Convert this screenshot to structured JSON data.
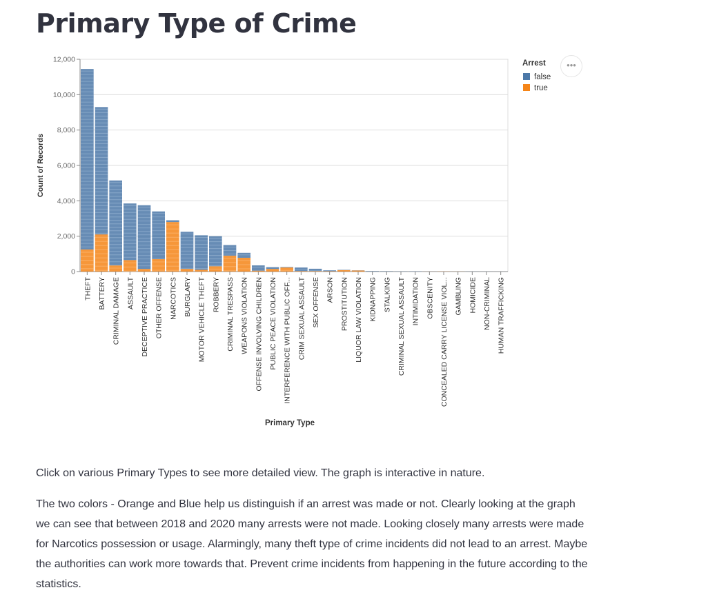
{
  "page": {
    "title": "Primary Type of Crime",
    "paragraph1": "Click on various Primary Types to see more detailed view. The graph is interactive in nature.",
    "paragraph2": "The two colors - Orange and Blue help us distinguish if an arrest was made or not. Clearly looking at the graph we can see that between 2018 and 2020 many arrests were not made. Looking closely many arrests were made for Narcotics possession or usage. Alarmingly, many theft type of crime incidents did not lead to an arrest. Maybe the authorities can work more towards that. Prevent crime incidents from happening in the future according to the statistics.",
    "menu_glyph": "•••"
  },
  "chart_data": {
    "type": "bar",
    "stacked": true,
    "xlabel": "Primary Type",
    "ylabel": "Count of Records",
    "ylim": [
      0,
      12000
    ],
    "yticks": [
      0,
      2000,
      4000,
      6000,
      8000,
      10000,
      12000
    ],
    "ytick_labels": [
      "0",
      "2,000",
      "4,000",
      "6,000",
      "8,000",
      "10,000",
      "12,000"
    ],
    "grid": true,
    "legend": {
      "title": "Arrest",
      "position": "top-right"
    },
    "categories": [
      "THEFT",
      "BATTERY",
      "CRIMINAL DAMAGE",
      "ASSAULT",
      "DECEPTIVE PRACTICE",
      "OTHER OFFENSE",
      "NARCOTICS",
      "BURGLARY",
      "MOTOR VEHICLE THEFT",
      "ROBBERY",
      "CRIMINAL TRESPASS",
      "WEAPONS VIOLATION",
      "OFFENSE INVOLVING CHILDREN",
      "PUBLIC PEACE VIOLATION",
      "INTERFERENCE WITH PUBLIC OFF...",
      "CRIM SEXUAL ASSAULT",
      "SEX OFFENSE",
      "ARSON",
      "PROSTITUTION",
      "LIQUOR LAW VIOLATION",
      "KIDNAPPING",
      "STALKING",
      "CRIMINAL SEXUAL ASSAULT",
      "INTIMIDATION",
      "OBSCENITY",
      "CONCEALED CARRY LICENSE VIOL...",
      "GAMBLING",
      "HOMICIDE",
      "NON-CRIMINAL",
      "HUMAN TRAFFICKING"
    ],
    "series": [
      {
        "name": "false",
        "color": "#4c78a8",
        "values": [
          10200,
          7200,
          4800,
          3200,
          3600,
          2700,
          100,
          2100,
          1950,
          1700,
          600,
          280,
          300,
          100,
          30,
          200,
          130,
          50,
          20,
          10,
          25,
          20,
          15,
          15,
          5,
          3,
          2,
          8,
          3,
          2
        ]
      },
      {
        "name": "true",
        "color": "#f58518",
        "values": [
          1250,
          2100,
          350,
          650,
          150,
          700,
          2800,
          150,
          100,
          300,
          900,
          780,
          50,
          150,
          230,
          30,
          30,
          20,
          80,
          60,
          5,
          5,
          5,
          3,
          5,
          10,
          5,
          2,
          0,
          0
        ]
      }
    ]
  }
}
